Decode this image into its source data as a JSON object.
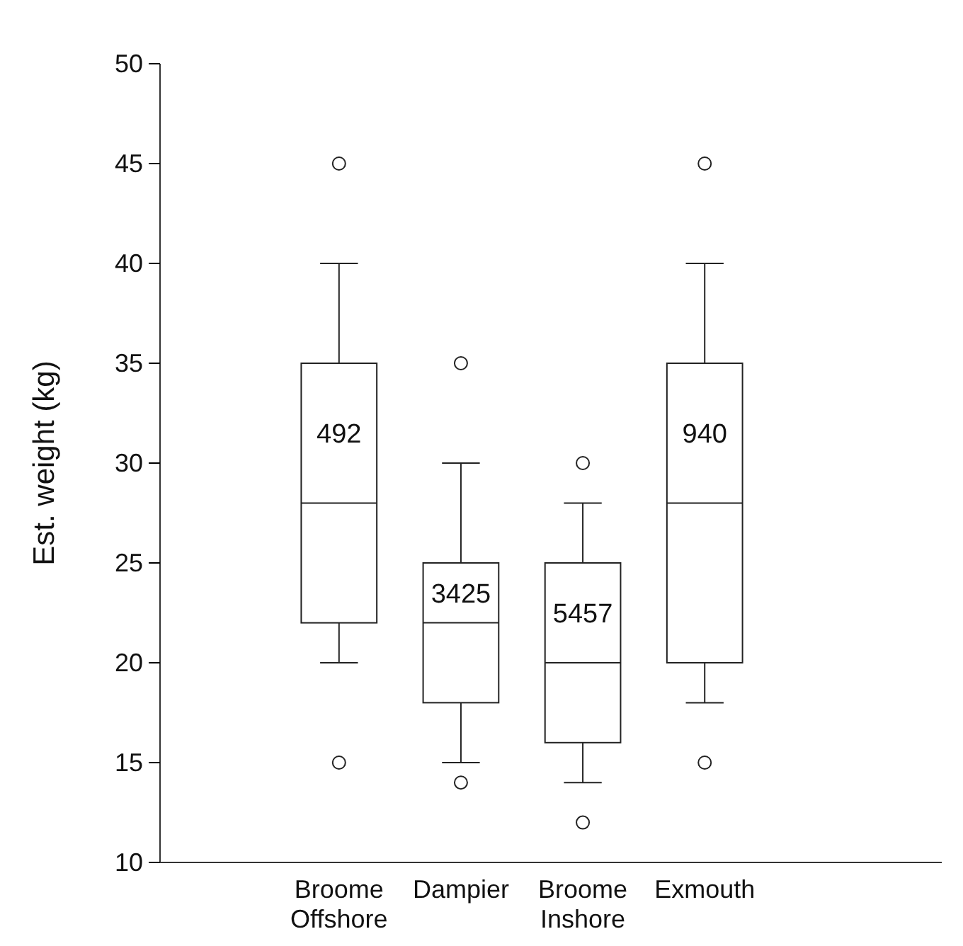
{
  "chart_data": {
    "type": "box",
    "ylabel": "Est. weight (kg)",
    "categories": [
      "Broome Offshore",
      "Dampier",
      "Broome Inshore",
      "Exmouth"
    ],
    "boxes": [
      {
        "low": 20,
        "q1": 22,
        "median": 28,
        "q3": 35,
        "high": 40,
        "outliers": [
          45,
          15
        ]
      },
      {
        "low": 15,
        "q1": 18,
        "median": 22,
        "q3": 25,
        "high": 30,
        "outliers": [
          35,
          14
        ]
      },
      {
        "low": 14,
        "q1": 16,
        "median": 20,
        "q3": 25,
        "high": 28,
        "outliers": [
          30,
          12
        ]
      },
      {
        "low": 18,
        "q1": 20,
        "median": 28,
        "q3": 35,
        "high": 40,
        "outliers": [
          45,
          15
        ]
      }
    ],
    "ylim": [
      10,
      50
    ],
    "yticks": [
      10,
      15,
      20,
      25,
      30,
      35,
      40,
      45,
      50
    ],
    "annotations": [
      "492",
      "3425",
      "5457",
      "940"
    ]
  }
}
